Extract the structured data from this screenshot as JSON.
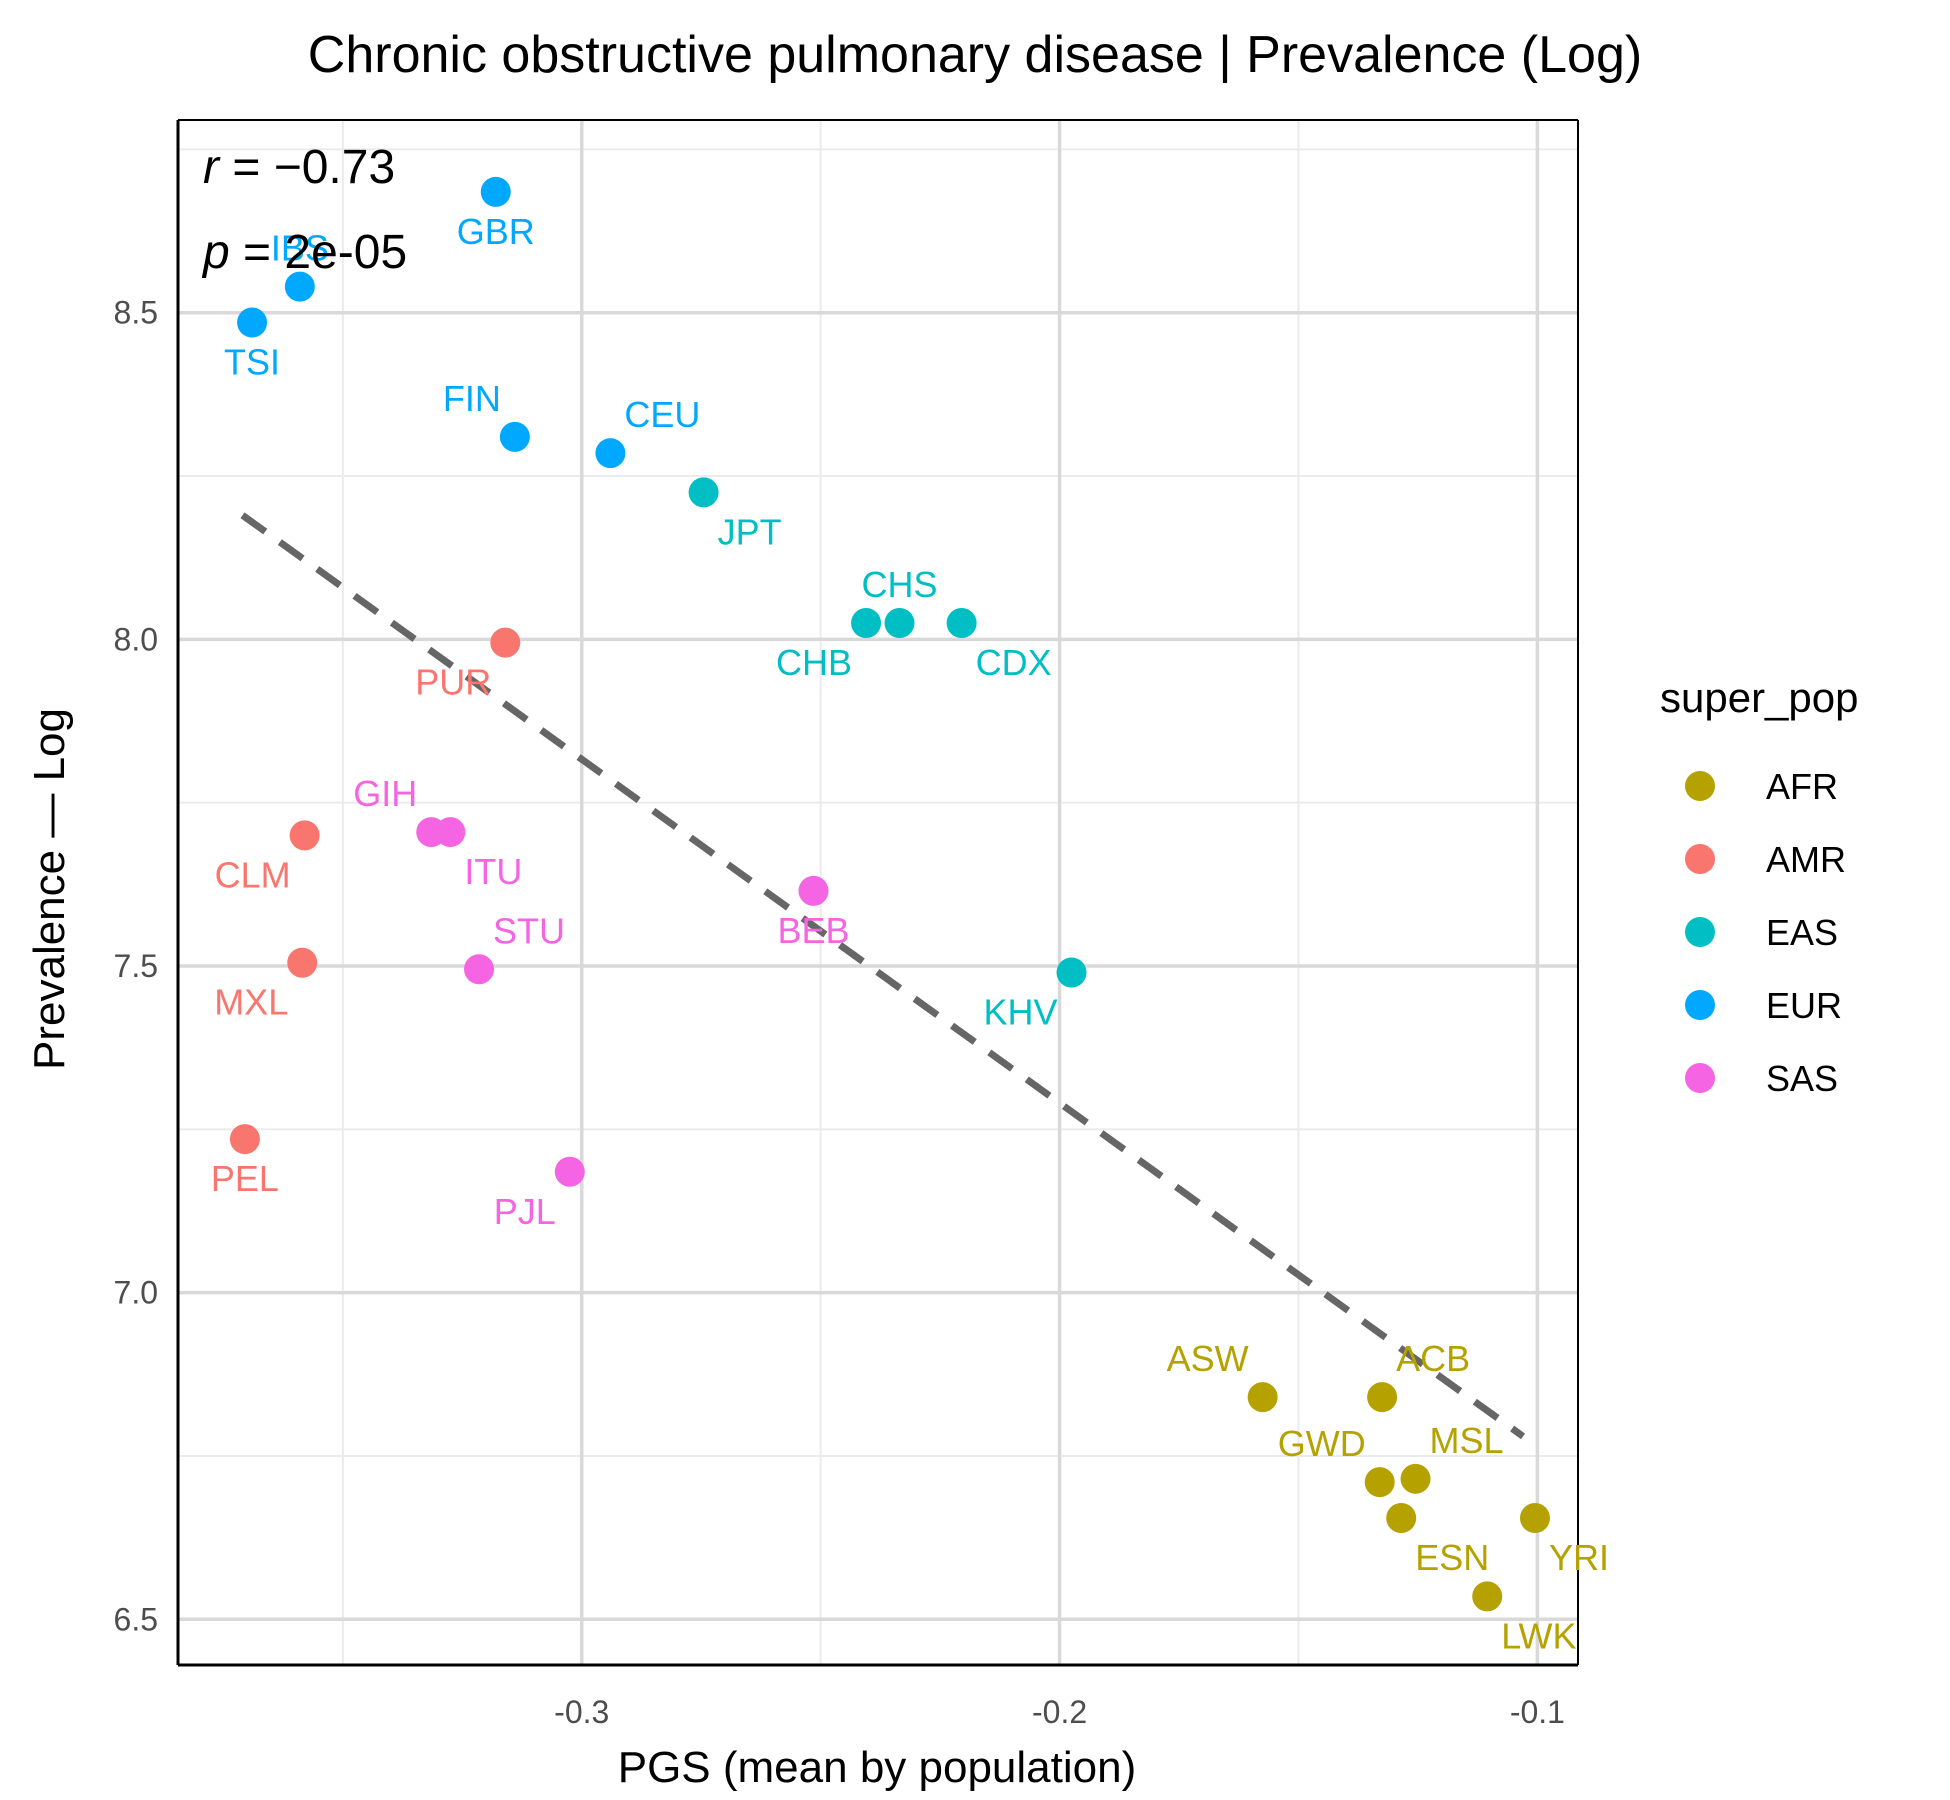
{
  "chart_data": {
    "type": "scatter",
    "title": "Chronic obstructive pulmonary disease | Prevalence (Log)",
    "xlabel": "PGS (mean by population)",
    "ylabel": "Prevalence — Log",
    "xlim": [
      -0.3845,
      -0.0915
    ],
    "ylim": [
      6.43,
      8.795
    ],
    "x_ticks": [
      -0.3,
      -0.2,
      -0.1
    ],
    "x_tick_labels": [
      "-0.3",
      "-0.2",
      "-0.1"
    ],
    "y_ticks": [
      6.5,
      7.0,
      7.5,
      8.0,
      8.5
    ],
    "y_tick_labels": [
      "6.5",
      "7.0",
      "7.5",
      "8.0",
      "8.5"
    ],
    "grid": true,
    "legend": {
      "title": "super_pop",
      "position": "right",
      "entries": [
        {
          "name": "AFR",
          "color": "#B5A200"
        },
        {
          "name": "AMR",
          "color": "#F8766D"
        },
        {
          "name": "EAS",
          "color": "#00BFC4"
        },
        {
          "name": "EUR",
          "color": "#00A9FF"
        },
        {
          "name": "SAS",
          "color": "#F564E3"
        }
      ]
    },
    "stats": {
      "r_symbol": "r",
      "r_text": " = −0.73",
      "p_symbol": "p",
      "p_text": " = 2e-05"
    },
    "trend_line": {
      "style": "dashed",
      "color": "#666666",
      "x": [
        -0.371,
        -0.103
      ],
      "y": [
        8.19,
        6.78
      ]
    },
    "points": [
      {
        "label": "GBR",
        "x": -0.318,
        "y": 8.685,
        "group": "EUR",
        "label_pos": "below"
      },
      {
        "label": "IBS",
        "x": -0.359,
        "y": 8.54,
        "group": "EUR",
        "label_pos": "above"
      },
      {
        "label": "TSI",
        "x": -0.369,
        "y": 8.485,
        "group": "EUR",
        "label_pos": "below"
      },
      {
        "label": "FIN",
        "x": -0.314,
        "y": 8.31,
        "group": "EUR",
        "label_pos": "above-left"
      },
      {
        "label": "CEU",
        "x": -0.294,
        "y": 8.285,
        "group": "EUR",
        "label_pos": "above-right"
      },
      {
        "label": "JPT",
        "x": -0.2745,
        "y": 8.225,
        "group": "EAS",
        "label_pos": "below-right"
      },
      {
        "label": "CHS",
        "x": -0.2335,
        "y": 8.025,
        "group": "EAS",
        "label_pos": "above"
      },
      {
        "label": "CHB",
        "x": -0.2405,
        "y": 8.025,
        "group": "EAS",
        "label_pos": "below-left"
      },
      {
        "label": "CDX",
        "x": -0.2205,
        "y": 8.025,
        "group": "EAS",
        "label_pos": "below-right"
      },
      {
        "label": "KHV",
        "x": -0.1975,
        "y": 7.49,
        "group": "EAS",
        "label_pos": "below-left"
      },
      {
        "label": "PUR",
        "x": -0.316,
        "y": 7.995,
        "group": "AMR",
        "label_pos": "below-left"
      },
      {
        "label": "CLM",
        "x": -0.358,
        "y": 7.7,
        "group": "AMR",
        "label_pos": "below-left"
      },
      {
        "label": "MXL",
        "x": -0.3585,
        "y": 7.505,
        "group": "AMR",
        "label_pos": "below-left"
      },
      {
        "label": "PEL",
        "x": -0.3705,
        "y": 7.235,
        "group": "AMR",
        "label_pos": "below"
      },
      {
        "label": "GIH",
        "x": -0.3315,
        "y": 7.705,
        "group": "SAS",
        "label_pos": "above-left"
      },
      {
        "label": "ITU",
        "x": -0.3275,
        "y": 7.705,
        "group": "SAS",
        "label_pos": "below-right"
      },
      {
        "label": "STU",
        "x": -0.3215,
        "y": 7.495,
        "group": "SAS",
        "label_pos": "above-right"
      },
      {
        "label": "BEB",
        "x": -0.2515,
        "y": 7.615,
        "group": "SAS",
        "label_pos": "below"
      },
      {
        "label": "PJL",
        "x": -0.3025,
        "y": 7.185,
        "group": "SAS",
        "label_pos": "below-left"
      },
      {
        "label": "ASW",
        "x": -0.1575,
        "y": 6.84,
        "group": "AFR",
        "label_pos": "above-left"
      },
      {
        "label": "ACB",
        "x": -0.1325,
        "y": 6.84,
        "group": "AFR",
        "label_pos": "above-right"
      },
      {
        "label": "GWD",
        "x": -0.133,
        "y": 6.71,
        "group": "AFR",
        "label_pos": "above-left"
      },
      {
        "label": "MSL",
        "x": -0.1255,
        "y": 6.715,
        "group": "AFR",
        "label_pos": "above-right"
      },
      {
        "label": "ESN",
        "x": -0.1285,
        "y": 6.655,
        "group": "AFR",
        "label_pos": "below-right"
      },
      {
        "label": "YRI",
        "x": -0.1005,
        "y": 6.655,
        "group": "AFR",
        "label_pos": "below-right"
      },
      {
        "label": "LWK",
        "x": -0.1105,
        "y": 6.535,
        "group": "AFR",
        "label_pos": "below-right"
      }
    ]
  }
}
